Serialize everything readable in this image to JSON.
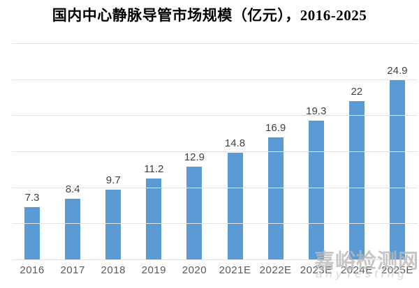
{
  "chart_data": {
    "type": "bar",
    "title": "国内中心静脉导管市场规模（亿元），2016-2025",
    "categories": [
      "2016",
      "2017",
      "2018",
      "2019",
      "2020",
      "2021E",
      "2022E",
      "2023E",
      "2024E",
      "2025E"
    ],
    "values": [
      7.3,
      8.4,
      9.7,
      11.2,
      12.9,
      14.8,
      16.9,
      19.3,
      22,
      24.9
    ],
    "labels": [
      "7.3",
      "8.4",
      "9.7",
      "11.2",
      "12.9",
      "14.8",
      "16.9",
      "19.3",
      "22",
      "24.9"
    ],
    "xlabel": "",
    "ylabel": "",
    "ylim": [
      0,
      30
    ],
    "grid_step": 5,
    "grid": "horizontal-only",
    "y_tick_labels_visible": false,
    "legend_position": "none",
    "bar_color": "#5B9BD5"
  },
  "watermark": {
    "text": "嘉峪检测网",
    "subtext": "anyTesting"
  },
  "colors": {
    "bar": "#5B9BD5",
    "gridline": "#e2e2e2",
    "value_label": "#404040",
    "axis_label": "#595959",
    "title": "#000000",
    "watermark": "#b9b9b9"
  }
}
